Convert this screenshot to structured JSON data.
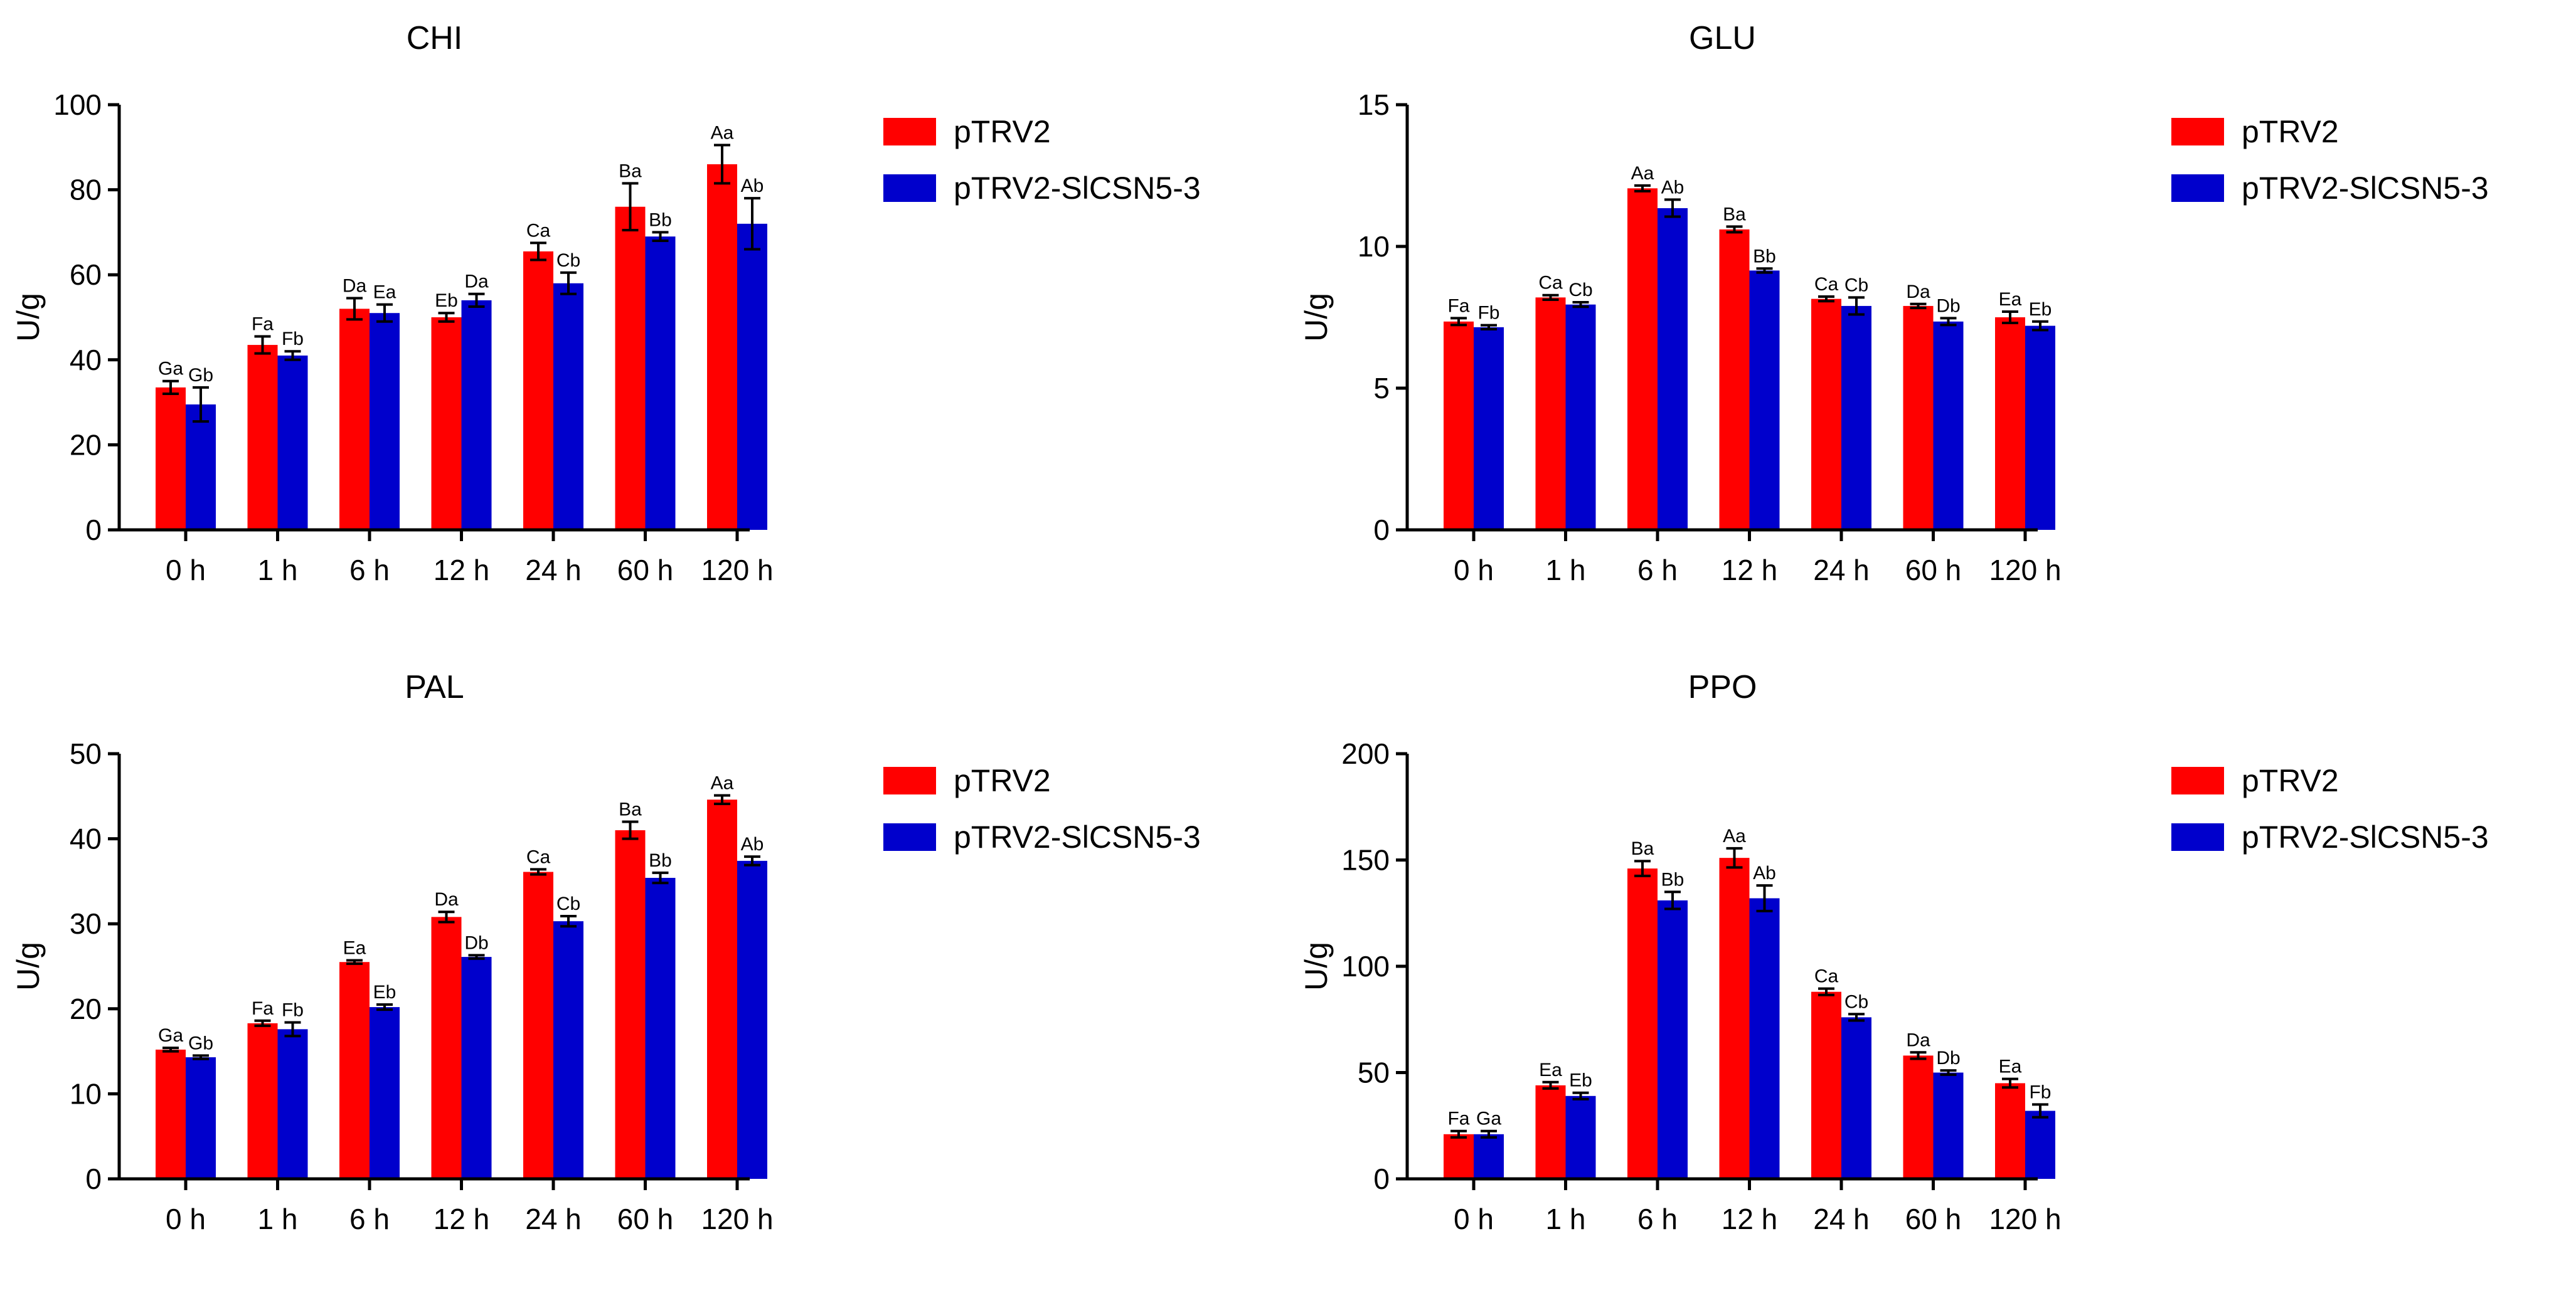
{
  "chart_data": [
    {
      "type": "bar",
      "title": "CHI",
      "ylabel": "U/g",
      "xlabel": "",
      "ylim": [
        0,
        100
      ],
      "yticks": [
        0,
        20,
        40,
        60,
        80,
        100
      ],
      "categories": [
        "0 h",
        "1 h",
        "6 h",
        "12 h",
        "24 h",
        "60 h",
        "120 h"
      ],
      "legend_position": "right",
      "grid": false,
      "series": [
        {
          "name": "pTRV2",
          "color": "#ff0000",
          "values": [
            33.5,
            43.5,
            52,
            50,
            65.5,
            76,
            86
          ],
          "errors": [
            1.5,
            2,
            2.5,
            1,
            2,
            5.5,
            4.5
          ],
          "labels": [
            "Ga",
            "Fa",
            "Da",
            "Eb",
            "Ca",
            "Ba",
            "Aa"
          ]
        },
        {
          "name": "pTRV2-SlCSN5-3",
          "color": "#0000cc",
          "values": [
            29.5,
            41,
            51,
            54,
            58,
            69,
            72
          ],
          "errors": [
            4,
            1,
            2,
            1.5,
            2.5,
            1,
            6
          ],
          "labels": [
            "Gb",
            "Fb",
            "Ea",
            "Da",
            "Cb",
            "Bb",
            "Ab"
          ]
        }
      ]
    },
    {
      "type": "bar",
      "title": "GLU",
      "ylabel": "U/g",
      "xlabel": "",
      "ylim": [
        0,
        15
      ],
      "yticks": [
        0,
        5,
        10,
        15
      ],
      "categories": [
        "0 h",
        "1 h",
        "6 h",
        "12 h",
        "24 h",
        "60 h",
        "120 h"
      ],
      "legend_position": "right",
      "grid": false,
      "series": [
        {
          "name": "pTRV2",
          "color": "#ff0000",
          "values": [
            7.35,
            8.2,
            12.05,
            10.6,
            8.15,
            7.9,
            7.5
          ],
          "errors": [
            0.12,
            0.08,
            0.1,
            0.1,
            0.08,
            0.07,
            0.2
          ],
          "labels": [
            "Fa",
            "Ca",
            "Aa",
            "Ba",
            "Ca",
            "Da",
            "Ea"
          ]
        },
        {
          "name": "pTRV2-SlCSN5-3",
          "color": "#0000cc",
          "values": [
            7.15,
            7.95,
            11.35,
            9.15,
            7.9,
            7.35,
            7.2
          ],
          "errors": [
            0.07,
            0.08,
            0.3,
            0.07,
            0.3,
            0.12,
            0.15
          ],
          "labels": [
            "Fb",
            "Cb",
            "Ab",
            "Bb",
            "Cb",
            "Db",
            "Eb"
          ]
        }
      ]
    },
    {
      "type": "bar",
      "title": "PAL",
      "ylabel": "U/g",
      "xlabel": "",
      "ylim": [
        0,
        50
      ],
      "yticks": [
        0,
        10,
        20,
        30,
        40,
        50
      ],
      "categories": [
        "0 h",
        "1 h",
        "6 h",
        "12 h",
        "24 h",
        "60 h",
        "120 h"
      ],
      "legend_position": "right",
      "grid": false,
      "series": [
        {
          "name": "pTRV2",
          "color": "#ff0000",
          "values": [
            15.2,
            18.3,
            25.5,
            30.8,
            36.1,
            41,
            44.6
          ],
          "errors": [
            0.2,
            0.3,
            0.2,
            0.6,
            0.3,
            1,
            0.5
          ],
          "labels": [
            "Ga",
            "Fa",
            "Ea",
            "Da",
            "Ca",
            "Ba",
            "Aa"
          ]
        },
        {
          "name": "pTRV2-SlCSN5-3",
          "color": "#0000cc",
          "values": [
            14.3,
            17.6,
            20.2,
            26.1,
            30.3,
            35.4,
            37.4
          ],
          "errors": [
            0.2,
            0.8,
            0.3,
            0.2,
            0.6,
            0.6,
            0.5
          ],
          "labels": [
            "Gb",
            "Fb",
            "Eb",
            "Db",
            "Cb",
            "Bb",
            "Ab"
          ]
        }
      ]
    },
    {
      "type": "bar",
      "title": "PPO",
      "ylabel": "U/g",
      "xlabel": "",
      "ylim": [
        0,
        200
      ],
      "yticks": [
        0,
        50,
        100,
        150,
        200
      ],
      "categories": [
        "0 h",
        "1 h",
        "6 h",
        "12 h",
        "24 h",
        "60 h",
        "120 h"
      ],
      "legend_position": "right",
      "grid": false,
      "series": [
        {
          "name": "pTRV2",
          "color": "#ff0000",
          "values": [
            21,
            44,
            146,
            151,
            88,
            58,
            45
          ],
          "errors": [
            1.5,
            1.5,
            3.5,
            4.5,
            1.5,
            1.5,
            2
          ],
          "labels": [
            "Fa",
            "Ea",
            "Ba",
            "Aa",
            "Ca",
            "Da",
            "Ea"
          ]
        },
        {
          "name": "pTRV2-SlCSN5-3",
          "color": "#0000cc",
          "values": [
            21,
            39,
            131,
            132,
            76,
            50,
            32
          ],
          "errors": [
            1.5,
            1.5,
            4,
            6,
            1.5,
            1,
            3
          ],
          "labels": [
            "Ga",
            "Eb",
            "Bb",
            "Ab",
            "Cb",
            "Db",
            "Fb"
          ]
        }
      ]
    }
  ]
}
